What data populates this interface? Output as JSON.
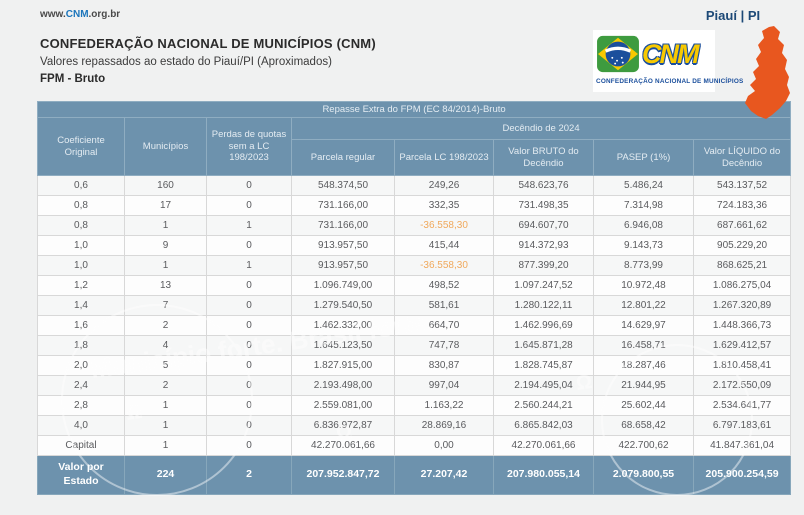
{
  "page": {
    "url_prefix": "www.",
    "url_brand": "CNM",
    "url_suffix": ".org.br",
    "state_label": "Piauí | PI"
  },
  "header": {
    "title": "CONFEDERAÇÃO NACIONAL DE MUNICÍPIOS (CNM)",
    "subtitle": "Valores repassados ao estado do Piauí/PI (Aproximados)",
    "report_type": "FPM - Bruto"
  },
  "logo": {
    "brand": "CNM",
    "caption": "CONFEDERAÇÃO NACIONAL DE MUNICÍPIOS"
  },
  "colors": {
    "table_blue": "#6d92ad",
    "negative_orange": "#f0a95c",
    "state_map_orange": "#e8571f",
    "navy": "#1c4977",
    "brand_blue": "#1b75bb"
  },
  "watermark": {
    "text": "Município forte. Brasil forte."
  },
  "table": {
    "band_title": "Repasse Extra do FPM (EC 84/2014)-Bruto",
    "group_header": "Decêndio de 2024",
    "columns": [
      "Coeficiente Original",
      "Municípios",
      "Perdas de quotas sem a LC 198/2023",
      "Parcela regular",
      "Parcela LC 198/2023",
      "Valor BRUTO do Decêndio",
      "PASEP (1%)",
      "Valor LÍQUIDO do Decêndio"
    ],
    "rows": [
      [
        "0,6",
        "160",
        "0",
        "548.374,50",
        "249,26",
        "548.623,76",
        "5.486,24",
        "543.137,52"
      ],
      [
        "0,8",
        "17",
        "0",
        "731.166,00",
        "332,35",
        "731.498,35",
        "7.314,98",
        "724.183,36"
      ],
      [
        "0,8",
        "1",
        "1",
        "731.166,00",
        "-36.558,30",
        "694.607,70",
        "6.946,08",
        "687.661,62"
      ],
      [
        "1,0",
        "9",
        "0",
        "913.957,50",
        "415,44",
        "914.372,93",
        "9.143,73",
        "905.229,20"
      ],
      [
        "1,0",
        "1",
        "1",
        "913.957,50",
        "-36.558,30",
        "877.399,20",
        "8.773,99",
        "868.625,21"
      ],
      [
        "1,2",
        "13",
        "0",
        "1.096.749,00",
        "498,52",
        "1.097.247,52",
        "10.972,48",
        "1.086.275,04"
      ],
      [
        "1,4",
        "7",
        "0",
        "1.279.540,50",
        "581,61",
        "1.280.122,11",
        "12.801,22",
        "1.267.320,89"
      ],
      [
        "1,6",
        "2",
        "0",
        "1.462.332,00",
        "664,70",
        "1.462.996,69",
        "14.629,97",
        "1.448.366,73"
      ],
      [
        "1,8",
        "4",
        "0",
        "1.645.123,50",
        "747,78",
        "1.645.871,28",
        "16.458,71",
        "1.629.412,57"
      ],
      [
        "2,0",
        "5",
        "0",
        "1.827.915,00",
        "830,87",
        "1.828.745,87",
        "18.287,46",
        "1.810.458,41"
      ],
      [
        "2,4",
        "2",
        "0",
        "2.193.498,00",
        "997,04",
        "2.194.495,04",
        "21.944,95",
        "2.172.550,09"
      ],
      [
        "2,8",
        "1",
        "0",
        "2.559.081,00",
        "1.163,22",
        "2.560.244,21",
        "25.602,44",
        "2.534.641,77"
      ],
      [
        "4,0",
        "1",
        "0",
        "6.836.972,87",
        "28.869,16",
        "6.865.842,03",
        "68.658,42",
        "6.797.183,61"
      ],
      [
        "Capital",
        "1",
        "0",
        "42.270.061,66",
        "0,00",
        "42.270.061,66",
        "422.700,62",
        "41.847.361,04"
      ]
    ],
    "footer": [
      "Valor por Estado",
      "224",
      "2",
      "207.952.847,72",
      "27.207,42",
      "207.980.055,14",
      "2.079.800,55",
      "205.900.254,59"
    ]
  }
}
